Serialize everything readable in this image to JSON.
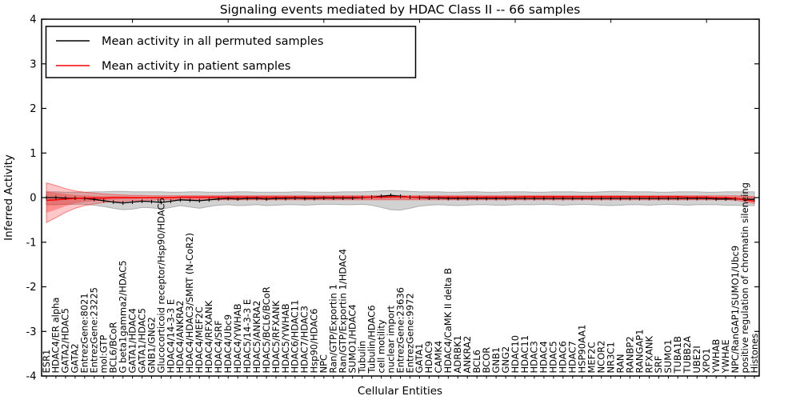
{
  "chart_data": {
    "type": "line",
    "title": "Signaling events mediated by HDAC Class II -- 66 samples",
    "xlabel": "Cellular Entities",
    "ylabel": "Inferred Activity",
    "ylim": [
      -4,
      4
    ],
    "yticks": [
      4,
      3,
      2,
      1,
      0,
      -1,
      -2,
      -3,
      -4
    ],
    "ytick_labels": [
      "4",
      "3",
      "2",
      "1",
      "0",
      "-1",
      "-2",
      "-3",
      "-4"
    ],
    "grid": false,
    "legend_position": "upper left",
    "categories": [
      "ESR1",
      "HDAC4/ER alpha",
      "GATA2/HDAC5",
      "GATA2",
      "EntrezGene:8021",
      "EntrezGene:23225",
      "mol:GTP",
      "BCL6/BCoR",
      "G beta1gamma2/HDAC5",
      "GATA1/HDAC4",
      "GATA1/HDAC5",
      "GNB1/GNG2",
      "Glucocorticoid receptor/Hsp90/HDAC6",
      "HDAC4/14-3-3 E",
      "HDAC4/ANKRA2",
      "HDAC4/HDAC3/SMRT (N-CoR2)",
      "HDAC4/MEF2C",
      "HDAC4/RFXANK",
      "HDAC4/SRF",
      "HDAC4/Ubc9",
      "HDAC4/YWHAB",
      "HDAC5/14-3-3 E",
      "HDAC5/ANKRA2",
      "HDAC5/BCL6/BCoR",
      "HDAC5/RFXANK",
      "HDAC5/YWHAB",
      "HDAC6/HDAC11",
      "HDAC7/HDAC3",
      "Hsp90/HDAC6",
      "NPC",
      "Ran/GTP/Exportin 1",
      "Ran/GTP/Exportin 1/HDAC4",
      "SUMO1/HDAC4",
      "Tubulin",
      "Tubulin/HDAC6",
      "cell motility",
      "nuclear import",
      "EntrezGene:23636",
      "EntrezGene:9972",
      "GATA1",
      "HDAC9",
      "CAMK4",
      "HDAC4/CaMK II delta B",
      "ADRBK1",
      "ANKRA2",
      "BCL6",
      "BCOR",
      "GNB1",
      "GNG2",
      "HDAC10",
      "HDAC11",
      "HDAC3",
      "HDAC4",
      "HDAC5",
      "HDAC6",
      "HDAC7",
      "HSP90AA1",
      "MEF2C",
      "NCOR2",
      "NR3C1",
      "RAN",
      "RANBP2",
      "RANGAP1",
      "RFXANK",
      "SRF",
      "SUMO1",
      "TUBA1B",
      "TUBB2A",
      "UBE2I",
      "XPO1",
      "YWHAB",
      "YWHAE",
      "NPC/RanGAP1/SUMO1/Ubc9",
      "positive regulation of chromatin silencing",
      "Histones"
    ],
    "series": [
      {
        "name": "Mean activity in all permuted samples",
        "color": "#000000",
        "marker": "tick",
        "values": [
          0,
          0,
          -0.01,
          -0.01,
          -0.02,
          -0.04,
          -0.07,
          -0.1,
          -0.12,
          -0.1,
          -0.08,
          -0.09,
          -0.11,
          -0.08,
          -0.05,
          -0.06,
          -0.07,
          -0.05,
          -0.03,
          -0.02,
          -0.03,
          -0.02,
          -0.02,
          -0.03,
          -0.02,
          -0.02,
          -0.01,
          -0.02,
          -0.02,
          -0.01,
          -0.01,
          -0.01,
          -0.01,
          0,
          0.01,
          0.03,
          0.05,
          0.03,
          0.01,
          0,
          -0.01,
          -0.01,
          -0.02,
          -0.02,
          -0.02,
          -0.02,
          -0.02,
          -0.02,
          -0.02,
          -0.02,
          -0.02,
          -0.02,
          -0.02,
          -0.02,
          -0.02,
          -0.02,
          -0.02,
          -0.02,
          -0.02,
          -0.02,
          -0.02,
          -0.02,
          -0.02,
          -0.02,
          -0.02,
          -0.02,
          -0.02,
          -0.02,
          -0.02,
          -0.02,
          -0.03,
          -0.03,
          -0.03,
          -0.04,
          -0.04
        ]
      },
      {
        "name": "Mean activity in patient samples",
        "color": "#ff0000",
        "marker": "none",
        "values": [
          -0.06,
          -0.05,
          -0.03,
          -0.02,
          -0.01,
          -0.01,
          -0.01,
          0,
          0,
          0,
          0,
          0,
          0,
          0,
          0.01,
          0.01,
          0.01,
          0.01,
          0.01,
          0.01,
          0.01,
          0.01,
          0.01,
          0.01,
          0.01,
          0.01,
          0.01,
          0.01,
          0.01,
          0.01,
          0.01,
          0.01,
          0.01,
          0.01,
          0.01,
          0.01,
          0.02,
          0.02,
          0.01,
          0.01,
          0.01,
          0.01,
          0.01,
          0.01,
          0.01,
          0.01,
          0.01,
          0.01,
          0.01,
          0.01,
          0.02,
          0.02,
          0.02,
          0.02,
          0.02,
          0.02,
          0.02,
          0.02,
          0.02,
          0.02,
          0.02,
          0.02,
          0.02,
          0.02,
          0.02,
          0.02,
          0.02,
          0.01,
          0.01,
          0.01,
          0,
          0,
          -0.02,
          -0.05,
          -0.08
        ]
      }
    ],
    "bands": [
      {
        "name": "permuted-samples-range",
        "color": "#888888",
        "fill_opacity": 0.38,
        "edge_opacity": 0.6,
        "hi": [
          0.13,
          0.13,
          0.12,
          0.12,
          0.12,
          0.13,
          0.13,
          0.14,
          0.14,
          0.13,
          0.13,
          0.13,
          0.13,
          0.12,
          0.12,
          0.13,
          0.13,
          0.12,
          0.12,
          0.12,
          0.13,
          0.13,
          0.12,
          0.12,
          0.12,
          0.12,
          0.13,
          0.13,
          0.12,
          0.12,
          0.12,
          0.13,
          0.13,
          0.13,
          0.14,
          0.15,
          0.16,
          0.15,
          0.14,
          0.13,
          0.13,
          0.13,
          0.12,
          0.12,
          0.13,
          0.13,
          0.12,
          0.12,
          0.13,
          0.13,
          0.13,
          0.12,
          0.12,
          0.13,
          0.13,
          0.13,
          0.12,
          0.12,
          0.13,
          0.14,
          0.14,
          0.13,
          0.13,
          0.13,
          0.12,
          0.12,
          0.13,
          0.13,
          0.13,
          0.12,
          0.12,
          0.13,
          0.13,
          0.13,
          0.13
        ],
        "lo": [
          -0.16,
          -0.16,
          -0.15,
          -0.15,
          -0.15,
          -0.17,
          -0.2,
          -0.24,
          -0.27,
          -0.26,
          -0.22,
          -0.23,
          -0.26,
          -0.22,
          -0.18,
          -0.21,
          -0.24,
          -0.2,
          -0.17,
          -0.16,
          -0.18,
          -0.17,
          -0.16,
          -0.18,
          -0.17,
          -0.16,
          -0.16,
          -0.17,
          -0.16,
          -0.15,
          -0.15,
          -0.16,
          -0.16,
          -0.15,
          -0.17,
          -0.22,
          -0.27,
          -0.28,
          -0.24,
          -0.19,
          -0.17,
          -0.16,
          -0.17,
          -0.18,
          -0.17,
          -0.16,
          -0.16,
          -0.17,
          -0.17,
          -0.16,
          -0.16,
          -0.16,
          -0.15,
          -0.16,
          -0.17,
          -0.16,
          -0.15,
          -0.16,
          -0.17,
          -0.18,
          -0.17,
          -0.16,
          -0.16,
          -0.17,
          -0.16,
          -0.15,
          -0.16,
          -0.17,
          -0.16,
          -0.16,
          -0.16,
          -0.17,
          -0.17,
          -0.18,
          -0.18
        ]
      },
      {
        "name": "patient-samples-range-outer",
        "color": "#ff0000",
        "fill_opacity": 0.22,
        "edge_opacity": 0.45,
        "hi": [
          0.33,
          0.27,
          0.2,
          0.15,
          0.12,
          0.1,
          0.08,
          0.07,
          0.06,
          0.05,
          0.05,
          0.04,
          0.04,
          0.04,
          0.04,
          0.04,
          0.04,
          0.04,
          0.04,
          0.04,
          0.04,
          0.04,
          0.04,
          0.04,
          0.04,
          0.04,
          0.04,
          0.04,
          0.04,
          0.04,
          0.04,
          0.04,
          0.04,
          0.04,
          0.04,
          0.04,
          0.04,
          0.04,
          0.04,
          0.04,
          0.04,
          0.04,
          0.04,
          0.04,
          0.04,
          0.04,
          0.04,
          0.04,
          0.04,
          0.04,
          0.04,
          0.04,
          0.04,
          0.04,
          0.04,
          0.04,
          0.04,
          0.04,
          0.04,
          0.04,
          0.04,
          0.04,
          0.04,
          0.04,
          0.04,
          0.04,
          0.04,
          0.04,
          0.04,
          0.04,
          0.04,
          0.04,
          0.04,
          0.03,
          0.02
        ],
        "lo": [
          -0.56,
          -0.45,
          -0.33,
          -0.24,
          -0.18,
          -0.14,
          -0.11,
          -0.09,
          -0.08,
          -0.07,
          -0.06,
          -0.06,
          -0.05,
          -0.05,
          -0.05,
          -0.05,
          -0.05,
          -0.05,
          -0.05,
          -0.05,
          -0.05,
          -0.05,
          -0.05,
          -0.05,
          -0.05,
          -0.05,
          -0.05,
          -0.05,
          -0.05,
          -0.05,
          -0.05,
          -0.05,
          -0.05,
          -0.05,
          -0.05,
          -0.05,
          -0.05,
          -0.05,
          -0.05,
          -0.05,
          -0.05,
          -0.05,
          -0.05,
          -0.05,
          -0.05,
          -0.05,
          -0.05,
          -0.05,
          -0.05,
          -0.05,
          -0.05,
          -0.05,
          -0.05,
          -0.05,
          -0.05,
          -0.05,
          -0.05,
          -0.05,
          -0.05,
          -0.05,
          -0.05,
          -0.05,
          -0.05,
          -0.05,
          -0.05,
          -0.05,
          -0.05,
          -0.05,
          -0.05,
          -0.05,
          -0.05,
          -0.05,
          -0.06,
          -0.09,
          -0.13
        ]
      },
      {
        "name": "patient-samples-range-inner",
        "color": "#ff0000",
        "fill_opacity": 0.28,
        "edge_opacity": 0,
        "hi": [
          0.14,
          0.11,
          0.08,
          0.06,
          0.05,
          0.04,
          0.03,
          0.03,
          0.03,
          0.02,
          0.02,
          0.02,
          0.02,
          0.02,
          0.02,
          0.02,
          0.02,
          0.02,
          0.02,
          0.02,
          0.02,
          0.02,
          0.02,
          0.02,
          0.02,
          0.02,
          0.02,
          0.02,
          0.02,
          0.02,
          0.02,
          0.02,
          0.02,
          0.02,
          0.02,
          0.02,
          0.02,
          0.02,
          0.02,
          0.02,
          0.02,
          0.02,
          0.02,
          0.02,
          0.02,
          0.02,
          0.02,
          0.02,
          0.02,
          0.02,
          0.02,
          0.02,
          0.02,
          0.02,
          0.02,
          0.02,
          0.02,
          0.02,
          0.02,
          0.02,
          0.02,
          0.02,
          0.02,
          0.02,
          0.02,
          0.02,
          0.02,
          0.02,
          0.02,
          0.02,
          0.02,
          0.02,
          0.02,
          0.02,
          0.01
        ],
        "lo": [
          -0.34,
          -0.27,
          -0.19,
          -0.13,
          -0.1,
          -0.08,
          -0.06,
          -0.05,
          -0.04,
          -0.04,
          -0.03,
          -0.03,
          -0.03,
          -0.03,
          -0.03,
          -0.03,
          -0.03,
          -0.03,
          -0.03,
          -0.03,
          -0.03,
          -0.03,
          -0.03,
          -0.03,
          -0.03,
          -0.03,
          -0.03,
          -0.03,
          -0.03,
          -0.03,
          -0.03,
          -0.03,
          -0.03,
          -0.03,
          -0.03,
          -0.03,
          -0.03,
          -0.03,
          -0.03,
          -0.03,
          -0.03,
          -0.03,
          -0.03,
          -0.03,
          -0.03,
          -0.03,
          -0.03,
          -0.03,
          -0.03,
          -0.03,
          -0.03,
          -0.03,
          -0.03,
          -0.03,
          -0.03,
          -0.03,
          -0.03,
          -0.03,
          -0.03,
          -0.03,
          -0.03,
          -0.03,
          -0.03,
          -0.03,
          -0.03,
          -0.03,
          -0.03,
          -0.03,
          -0.03,
          -0.03,
          -0.03,
          -0.03,
          -0.04,
          -0.06,
          -0.09
        ]
      }
    ]
  }
}
